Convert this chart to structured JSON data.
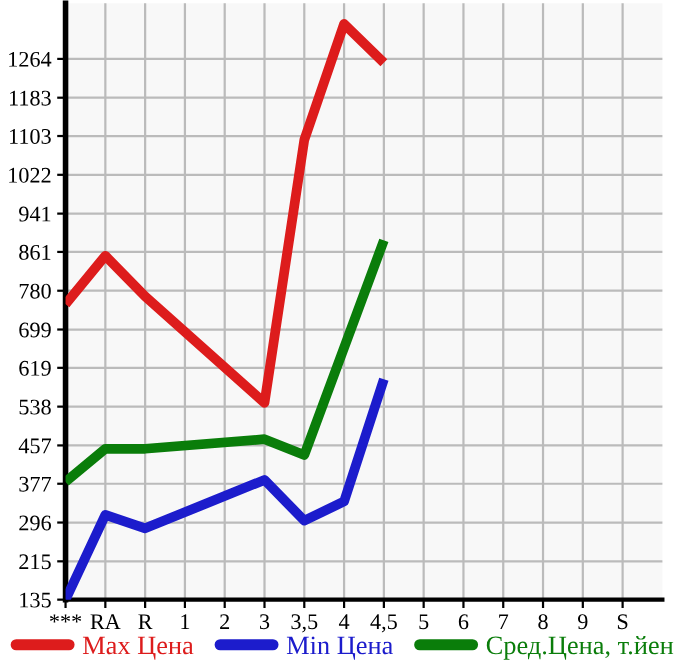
{
  "chart_data": {
    "type": "line",
    "categories": [
      "***",
      "RA",
      "R",
      "1",
      "2",
      "3",
      "3,5",
      "4",
      "4,5",
      "5",
      "6",
      "7",
      "8",
      "9",
      "S"
    ],
    "series": [
      {
        "name": "Max Цена",
        "color": "#dd1c1c",
        "values": [
          752,
          853,
          768,
          null,
          null,
          546,
          1095,
          1337,
          1256,
          null,
          null,
          null,
          null,
          null,
          null
        ]
      },
      {
        "name": "Min Цена",
        "color": "#1c1ccc",
        "values": [
          135,
          312,
          284,
          null,
          null,
          385,
          300,
          340,
          595,
          null,
          null,
          null,
          null,
          null,
          null
        ]
      },
      {
        "name": "Сред.Цена, т.йен",
        "color": "#0a7d0a",
        "values": [
          381,
          450,
          450,
          null,
          null,
          470,
          437,
          null,
          885,
          null,
          null,
          null,
          null,
          null,
          null
        ]
      }
    ],
    "ylim": [
      135,
      1380
    ],
    "yticks": [
      135,
      215,
      296,
      377,
      457,
      538,
      619,
      699,
      780,
      861,
      941,
      1022,
      1103,
      1183,
      1264
    ],
    "grid": true,
    "legend": "bottom",
    "marker": "none",
    "line_style": "solid"
  }
}
